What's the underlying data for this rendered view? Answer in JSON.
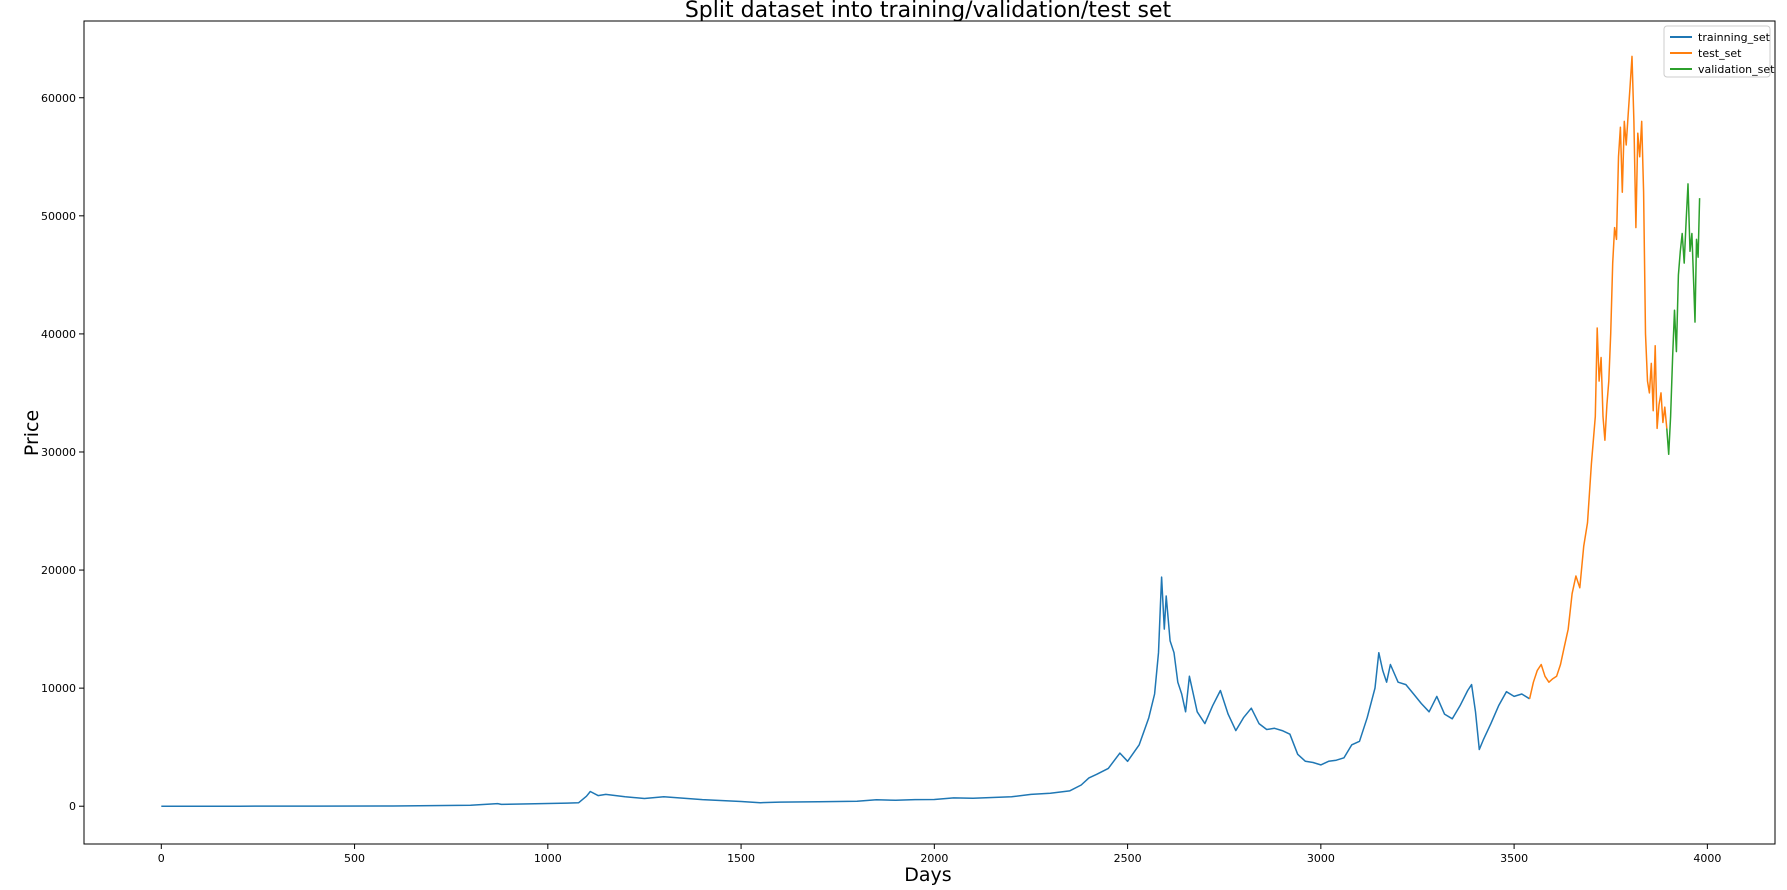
{
  "chart_data": {
    "type": "line",
    "title": "Split dataset into training/validation/test set",
    "xlabel": "Days",
    "ylabel": "Price",
    "xlim": [
      -200,
      4175
    ],
    "ylim": [
      -3200,
      66500
    ],
    "xticks": [
      0,
      500,
      1000,
      1500,
      2000,
      2500,
      3000,
      3500,
      4000
    ],
    "yticks": [
      0,
      10000,
      20000,
      30000,
      40000,
      50000,
      60000
    ],
    "grid": false,
    "legend_position": "top-right",
    "series": [
      {
        "name": "trainning_set",
        "color": "#1f77b4",
        "points": [
          [
            0,
            0
          ],
          [
            200,
            5
          ],
          [
            400,
            10
          ],
          [
            600,
            20
          ],
          [
            800,
            80
          ],
          [
            870,
            220
          ],
          [
            880,
            150
          ],
          [
            950,
            200
          ],
          [
            1000,
            230
          ],
          [
            1050,
            260
          ],
          [
            1080,
            300
          ],
          [
            1100,
            850
          ],
          [
            1110,
            1250
          ],
          [
            1130,
            900
          ],
          [
            1150,
            1000
          ],
          [
            1200,
            800
          ],
          [
            1250,
            650
          ],
          [
            1300,
            800
          ],
          [
            1400,
            560
          ],
          [
            1500,
            400
          ],
          [
            1550,
            300
          ],
          [
            1600,
            350
          ],
          [
            1700,
            370
          ],
          [
            1800,
            420
          ],
          [
            1850,
            550
          ],
          [
            1900,
            500
          ],
          [
            1950,
            560
          ],
          [
            2000,
            570
          ],
          [
            2050,
            700
          ],
          [
            2100,
            680
          ],
          [
            2200,
            800
          ],
          [
            2250,
            1000
          ],
          [
            2300,
            1100
          ],
          [
            2350,
            1300
          ],
          [
            2380,
            1800
          ],
          [
            2400,
            2400
          ],
          [
            2420,
            2700
          ],
          [
            2450,
            3200
          ],
          [
            2480,
            4500
          ],
          [
            2500,
            3800
          ],
          [
            2530,
            5200
          ],
          [
            2555,
            7500
          ],
          [
            2570,
            9500
          ],
          [
            2580,
            13000
          ],
          [
            2585,
            17000
          ],
          [
            2588,
            19400
          ],
          [
            2595,
            15000
          ],
          [
            2600,
            17800
          ],
          [
            2610,
            14000
          ],
          [
            2620,
            13000
          ],
          [
            2630,
            10500
          ],
          [
            2640,
            9500
          ],
          [
            2650,
            8000
          ],
          [
            2660,
            11000
          ],
          [
            2670,
            9500
          ],
          [
            2680,
            8000
          ],
          [
            2700,
            7000
          ],
          [
            2720,
            8500
          ],
          [
            2740,
            9800
          ],
          [
            2760,
            7800
          ],
          [
            2780,
            6400
          ],
          [
            2800,
            7500
          ],
          [
            2820,
            8300
          ],
          [
            2840,
            7000
          ],
          [
            2860,
            6500
          ],
          [
            2880,
            6600
          ],
          [
            2900,
            6400
          ],
          [
            2920,
            6100
          ],
          [
            2940,
            4400
          ],
          [
            2960,
            3800
          ],
          [
            2980,
            3700
          ],
          [
            3000,
            3500
          ],
          [
            3020,
            3800
          ],
          [
            3040,
            3900
          ],
          [
            3060,
            4100
          ],
          [
            3080,
            5200
          ],
          [
            3100,
            5500
          ],
          [
            3120,
            7500
          ],
          [
            3140,
            10000
          ],
          [
            3150,
            13000
          ],
          [
            3160,
            11500
          ],
          [
            3170,
            10500
          ],
          [
            3180,
            12000
          ],
          [
            3200,
            10500
          ],
          [
            3220,
            10300
          ],
          [
            3240,
            9500
          ],
          [
            3260,
            8700
          ],
          [
            3280,
            8000
          ],
          [
            3300,
            9300
          ],
          [
            3320,
            7800
          ],
          [
            3340,
            7400
          ],
          [
            3360,
            8500
          ],
          [
            3380,
            9800
          ],
          [
            3390,
            10300
          ],
          [
            3400,
            8000
          ],
          [
            3410,
            4800
          ],
          [
            3420,
            5600
          ],
          [
            3440,
            7000
          ],
          [
            3460,
            8500
          ],
          [
            3480,
            9700
          ],
          [
            3500,
            9300
          ],
          [
            3520,
            9500
          ],
          [
            3540,
            9100
          ]
        ]
      },
      {
        "name": "test_set",
        "color": "#ff7f0e",
        "points": [
          [
            3540,
            9100
          ],
          [
            3550,
            10500
          ],
          [
            3560,
            11500
          ],
          [
            3570,
            12000
          ],
          [
            3580,
            11000
          ],
          [
            3590,
            10500
          ],
          [
            3600,
            10800
          ],
          [
            3610,
            11000
          ],
          [
            3620,
            12000
          ],
          [
            3630,
            13500
          ],
          [
            3640,
            15000
          ],
          [
            3650,
            18000
          ],
          [
            3660,
            19500
          ],
          [
            3670,
            18500
          ],
          [
            3680,
            22000
          ],
          [
            3690,
            24000
          ],
          [
            3700,
            29000
          ],
          [
            3710,
            33000
          ],
          [
            3715,
            40500
          ],
          [
            3720,
            36000
          ],
          [
            3725,
            38000
          ],
          [
            3730,
            33000
          ],
          [
            3735,
            31000
          ],
          [
            3740,
            34000
          ],
          [
            3745,
            36000
          ],
          [
            3750,
            40000
          ],
          [
            3755,
            46000
          ],
          [
            3760,
            49000
          ],
          [
            3765,
            48000
          ],
          [
            3770,
            55000
          ],
          [
            3775,
            57500
          ],
          [
            3780,
            52000
          ],
          [
            3785,
            58000
          ],
          [
            3790,
            56000
          ],
          [
            3795,
            58500
          ],
          [
            3800,
            61000
          ],
          [
            3805,
            63500
          ],
          [
            3810,
            58000
          ],
          [
            3815,
            49000
          ],
          [
            3820,
            57000
          ],
          [
            3825,
            55000
          ],
          [
            3830,
            58000
          ],
          [
            3835,
            52000
          ],
          [
            3840,
            40000
          ],
          [
            3845,
            36000
          ],
          [
            3850,
            35000
          ],
          [
            3855,
            37500
          ],
          [
            3860,
            33500
          ],
          [
            3865,
            39000
          ],
          [
            3870,
            32000
          ],
          [
            3875,
            34000
          ],
          [
            3880,
            35000
          ],
          [
            3885,
            32500
          ],
          [
            3890,
            33800
          ],
          [
            3895,
            32000
          ]
        ]
      },
      {
        "name": "validation_set",
        "color": "#2ca02c",
        "points": [
          [
            3895,
            32000
          ],
          [
            3900,
            29800
          ],
          [
            3905,
            33000
          ],
          [
            3910,
            38000
          ],
          [
            3915,
            42000
          ],
          [
            3920,
            38500
          ],
          [
            3925,
            45000
          ],
          [
            3930,
            47000
          ],
          [
            3935,
            48500
          ],
          [
            3940,
            46000
          ],
          [
            3945,
            49500
          ],
          [
            3950,
            52700
          ],
          [
            3955,
            47000
          ],
          [
            3960,
            48500
          ],
          [
            3965,
            44000
          ],
          [
            3968,
            41000
          ],
          [
            3972,
            48000
          ],
          [
            3976,
            46500
          ],
          [
            3980,
            51500
          ]
        ]
      }
    ]
  }
}
